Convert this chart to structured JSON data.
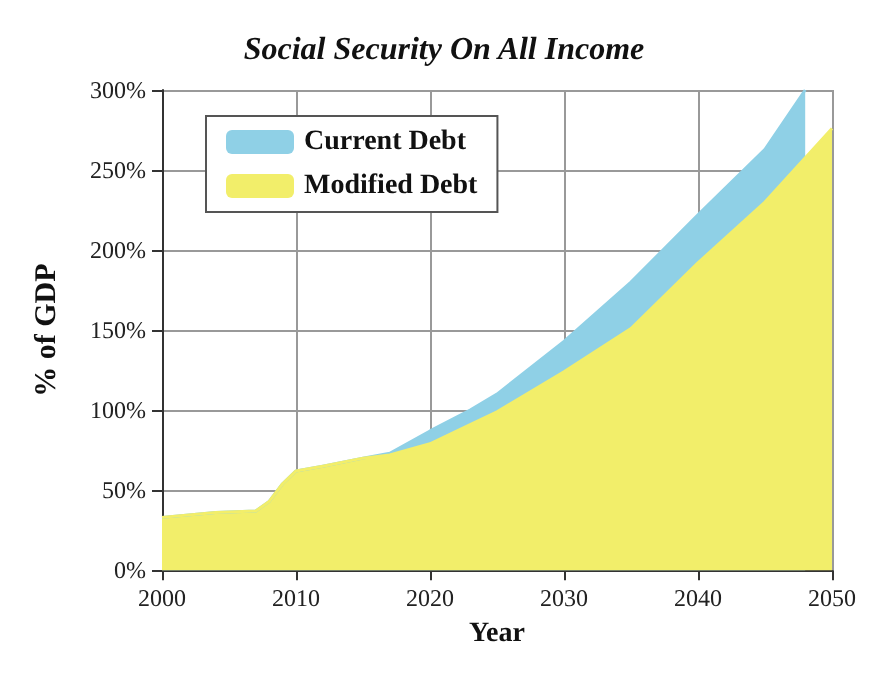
{
  "chart_data": {
    "type": "area",
    "title": "Social Security On All Income",
    "xlabel": "Year",
    "ylabel": "% of GDP",
    "x": [
      2000,
      2004,
      2007,
      2008,
      2009,
      2010,
      2012,
      2015,
      2017,
      2020,
      2023,
      2025,
      2030,
      2035,
      2040,
      2045,
      2048
    ],
    "series": [
      {
        "name": "Current Debt",
        "color": "#8fd0e6",
        "values": [
          33,
          36,
          37,
          43,
          54,
          62,
          65,
          70,
          73,
          87,
          100,
          110,
          143,
          180,
          222,
          263,
          300
        ]
      },
      {
        "name": "Modified Debt",
        "color": "#f2ee6a",
        "x": [
          2000,
          2004,
          2007,
          2008,
          2009,
          2010,
          2012,
          2015,
          2017,
          2020,
          2023,
          2025,
          2030,
          2035,
          2040,
          2045,
          2050
        ],
        "values": [
          33,
          36,
          37,
          43,
          54,
          62,
          65,
          70,
          72,
          79,
          91,
          99,
          124,
          151,
          192,
          230,
          276
        ]
      }
    ],
    "xlim": [
      2000,
      2050
    ],
    "xticks": [
      2000,
      2010,
      2020,
      2030,
      2040,
      2050
    ],
    "ylim": [
      0,
      300
    ],
    "yticks": [
      {
        "value": 0,
        "label": "0%"
      },
      {
        "value": 50,
        "label": "50%"
      },
      {
        "value": 100,
        "label": "100%"
      },
      {
        "value": 150,
        "label": "150%"
      },
      {
        "value": 200,
        "label": "200%"
      },
      {
        "value": 250,
        "label": "250%"
      },
      {
        "value": 300,
        "label": "300%"
      }
    ],
    "grid": true,
    "legend": "top left"
  }
}
